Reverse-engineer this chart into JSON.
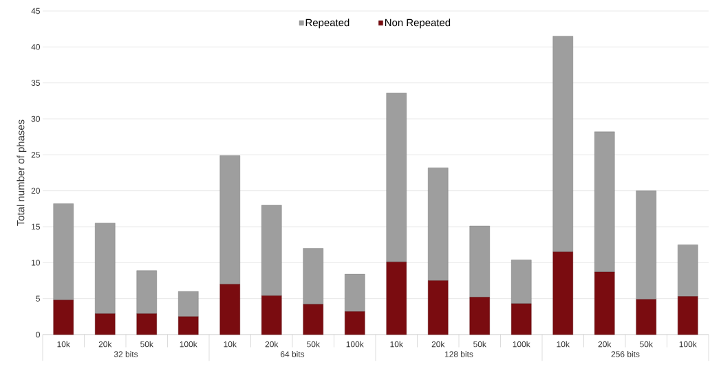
{
  "chart_data": {
    "type": "bar",
    "stacked": true,
    "ylabel": "Total number of phases",
    "categories": [
      "10k",
      "20k",
      "50k",
      "100k",
      "10k",
      "20k",
      "50k",
      "100k",
      "10k",
      "20k",
      "50k",
      "100k",
      "10k",
      "20k",
      "50k",
      "100k"
    ],
    "series": [
      {
        "name": "Non Repeated",
        "color": "#7a0c10",
        "values": [
          4.8,
          2.9,
          2.9,
          2.5,
          7.0,
          5.4,
          4.2,
          3.2,
          10.1,
          7.5,
          5.2,
          4.3,
          11.5,
          8.7,
          4.9,
          5.3
        ]
      },
      {
        "name": "Repeated",
        "color": "#9e9e9e",
        "values": [
          13.4,
          12.6,
          6.0,
          3.5,
          17.9,
          12.6,
          7.8,
          5.2,
          23.5,
          15.7,
          9.9,
          6.1,
          30.0,
          19.5,
          15.1,
          7.2
        ]
      }
    ],
    "annotations": [
      "32 bits",
      "64 bits",
      "128 bits",
      "256 bits"
    ],
    "ylim": [
      0,
      45
    ],
    "yticks": [
      0,
      5,
      10,
      15,
      20,
      25,
      30,
      35,
      40,
      45
    ],
    "grid": "y",
    "legend": "top"
  }
}
